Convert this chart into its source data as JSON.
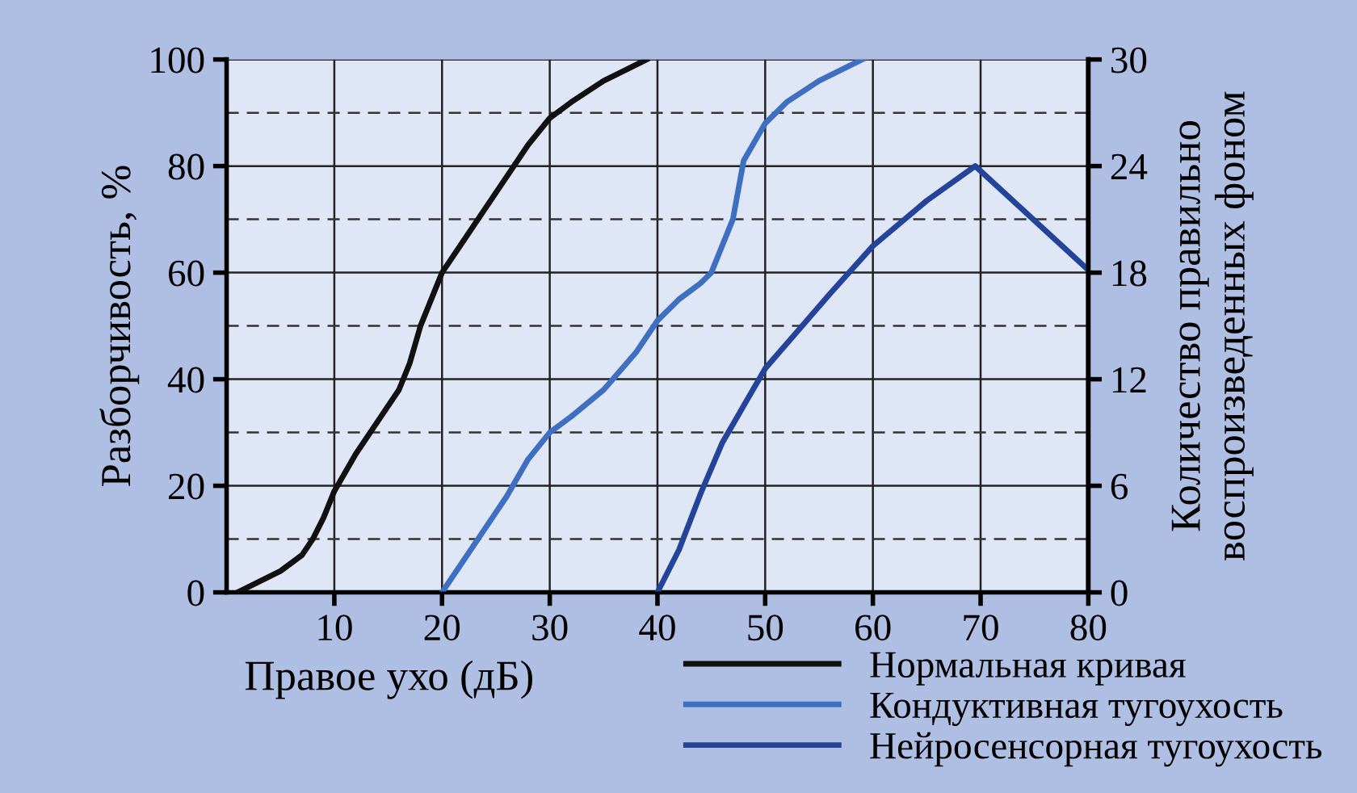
{
  "chart_data": {
    "type": "line",
    "xlabel": "Правое ухо (дБ)",
    "ylabel": "Разборчивость, %",
    "y2label": "Количество правильно\nвоспроизведенных фоном",
    "xlim": [
      0,
      80
    ],
    "xticks": [
      10,
      20,
      30,
      40,
      50,
      60,
      70,
      80
    ],
    "ylim": [
      0,
      100
    ],
    "yticks": [
      0,
      20,
      40,
      60,
      80,
      100
    ],
    "y2lim": [
      0,
      30
    ],
    "y2ticks": [
      0,
      6,
      12,
      18,
      24,
      30
    ],
    "grid": true,
    "legend": "bottom right",
    "marker": "none",
    "line_style": "solid",
    "series": [
      {
        "name": "Нормальная кривая",
        "color": "#111111",
        "x": [
          1,
          3,
          5,
          7,
          8,
          9,
          10,
          12,
          14,
          16,
          17,
          18,
          19,
          20,
          22,
          24,
          26,
          28,
          30,
          32,
          35,
          39
        ],
        "values": [
          0,
          2,
          4,
          7,
          10,
          14,
          19,
          26,
          32,
          38,
          43,
          50,
          55,
          60,
          66,
          72,
          78,
          84,
          89,
          92,
          96,
          100
        ]
      },
      {
        "name": "Кондуктивная тугоухость",
        "color": "#3f6fc0",
        "x": [
          20,
          22,
          24,
          26,
          28,
          30,
          32,
          35,
          38,
          40,
          42,
          44,
          45,
          47,
          48,
          50,
          52,
          55,
          59
        ],
        "values": [
          0,
          6,
          12,
          18,
          25,
          30,
          33,
          38,
          45,
          51,
          55,
          58,
          60,
          70,
          81,
          88,
          92,
          96,
          100
        ]
      },
      {
        "name": "Нейросенсорная тугоухость",
        "color": "#24449a",
        "x": [
          40,
          42,
          44,
          46,
          48,
          50,
          53,
          56,
          60,
          65,
          69.5,
          80
        ],
        "values": [
          0,
          8,
          18.5,
          28,
          35,
          42,
          49,
          56,
          65,
          73.5,
          80,
          60.5
        ]
      }
    ]
  }
}
